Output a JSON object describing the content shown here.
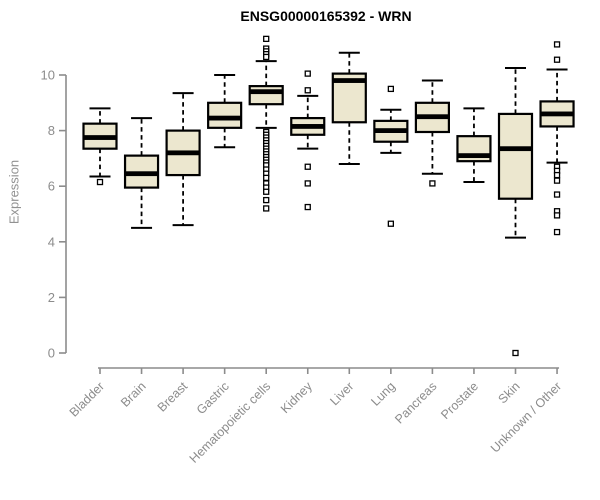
{
  "chart_data": {
    "type": "boxplot",
    "title": "ENSG00000165392 - WRN",
    "xlabel": "",
    "ylabel": "Expression",
    "ylim": [
      0,
      11.5
    ],
    "yticks": [
      0,
      2,
      4,
      6,
      8,
      10
    ],
    "grid": false,
    "legend": "none",
    "colors": {
      "box_fill": "#ece7cf",
      "box_border": "#000000",
      "median": "#000000",
      "whisker": "#000000",
      "outlier_fill": "#ffffff",
      "axis": "#8c8c8c",
      "tick_label": "#8c8c8c",
      "x_label": "#8c8c8c"
    },
    "categories": [
      "Bladder",
      "Brain",
      "Breast",
      "Gastric",
      "Hematopoietic cells",
      "Kidney",
      "Liver",
      "Lung",
      "Pancreas",
      "Prostate",
      "Skin",
      "Unknown / Other"
    ],
    "series": [
      {
        "category": "Bladder",
        "whisker_low": 6.35,
        "q1": 7.35,
        "median": 7.75,
        "q3": 8.25,
        "whisker_high": 8.8,
        "outliers": [
          6.15
        ]
      },
      {
        "category": "Brain",
        "whisker_low": 4.5,
        "q1": 5.95,
        "median": 6.45,
        "q3": 7.1,
        "whisker_high": 8.45,
        "outliers": []
      },
      {
        "category": "Breast",
        "whisker_low": 4.6,
        "q1": 6.4,
        "median": 7.2,
        "q3": 8.0,
        "whisker_high": 9.35,
        "outliers": []
      },
      {
        "category": "Gastric",
        "whisker_low": 7.4,
        "q1": 8.1,
        "median": 8.45,
        "q3": 9.0,
        "whisker_high": 10.0,
        "outliers": []
      },
      {
        "category": "Hematopoietic cells",
        "whisker_low": 8.1,
        "q1": 8.95,
        "median": 9.4,
        "q3": 9.6,
        "whisker_high": 10.5,
        "outliers": [
          11.3,
          10.95,
          10.85,
          10.75,
          10.65,
          7.95,
          7.85,
          7.75,
          7.65,
          7.55,
          7.45,
          7.35,
          7.25,
          7.15,
          7.05,
          6.95,
          6.85,
          6.75,
          6.6,
          6.45,
          6.3,
          6.1,
          5.95,
          5.8,
          5.5,
          5.2
        ]
      },
      {
        "category": "Kidney",
        "whisker_low": 7.35,
        "q1": 7.85,
        "median": 8.15,
        "q3": 8.45,
        "whisker_high": 9.25,
        "outliers": [
          10.05,
          9.45,
          6.7,
          6.1,
          5.25
        ]
      },
      {
        "category": "Liver",
        "whisker_low": 6.8,
        "q1": 8.3,
        "median": 9.8,
        "q3": 10.05,
        "whisker_high": 10.8,
        "outliers": []
      },
      {
        "category": "Lung",
        "whisker_low": 7.2,
        "q1": 7.6,
        "median": 8.0,
        "q3": 8.35,
        "whisker_high": 8.75,
        "outliers": [
          9.5,
          4.65
        ]
      },
      {
        "category": "Pancreas",
        "whisker_low": 6.45,
        "q1": 7.95,
        "median": 8.5,
        "q3": 9.0,
        "whisker_high": 9.8,
        "outliers": [
          6.1
        ]
      },
      {
        "category": "Prostate",
        "whisker_low": 6.15,
        "q1": 6.9,
        "median": 7.1,
        "q3": 7.8,
        "whisker_high": 8.8,
        "outliers": []
      },
      {
        "category": "Skin",
        "whisker_low": 4.15,
        "q1": 5.55,
        "median": 7.35,
        "q3": 8.6,
        "whisker_high": 10.25,
        "outliers": [
          0
        ]
      },
      {
        "category": "Unknown / Other",
        "whisker_low": 6.85,
        "q1": 8.15,
        "median": 8.6,
        "q3": 9.05,
        "whisker_high": 10.2,
        "outliers": [
          11.1,
          10.55,
          6.7,
          6.55,
          6.4,
          6.2,
          5.7,
          5.1,
          4.95,
          4.35
        ]
      }
    ]
  }
}
